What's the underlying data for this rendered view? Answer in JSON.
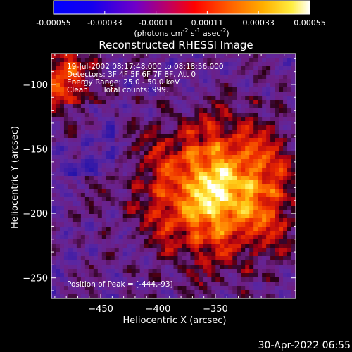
{
  "chart_data": {
    "type": "heatmap",
    "title": "Reconstructed RHESSI Image",
    "xlabel": "Heliocentric X (arcsec)",
    "ylabel": "Heliocentric Y (arcsec)",
    "xlim": [
      -493,
      -280
    ],
    "ylim": [
      -266,
      -76
    ],
    "x_ticks": [
      -450,
      -400,
      -350
    ],
    "y_ticks": [
      -100,
      -150,
      -200,
      -250
    ],
    "colorbar": {
      "ticks": [
        "-0.00055",
        "-0.00033",
        "-0.00011",
        "0.00011",
        "0.00033",
        "0.00055"
      ],
      "tick_values": [
        -0.00055,
        -0.00033,
        -0.00011,
        0.00011,
        0.00033,
        0.00055
      ],
      "range": [
        -0.00055,
        0.00055
      ],
      "unit_label_main": "(photons cm",
      "unit_exp1": "-2",
      "unit_label_mid": " s",
      "unit_exp2": "-1",
      "unit_label_tail": " asec",
      "unit_exp3": "-2",
      "unit_label_close": ")"
    },
    "annotations": {
      "time_range": "19-Jul-2002 08:17:48.000 to 08:18:56.000",
      "detectors": "Detectors: 3F 4F 5F 6F 7F 8F, Att 0",
      "energy_range": "Energy Range: 25.0 - 50.0 keV",
      "method": "Clean",
      "total_counts": "Total counts: 999.",
      "peak": "Position of Peak = [-444,-93]"
    },
    "peak_position": [
      -444,
      -93
    ],
    "colormap": "rainbow-to-white (blue, purple, red, orange, yellow, white)",
    "grid": false
  },
  "footer": {
    "timestamp": "30-Apr-2022 06:55"
  },
  "colors": {
    "background": "#000000",
    "text": "#ffffff"
  }
}
